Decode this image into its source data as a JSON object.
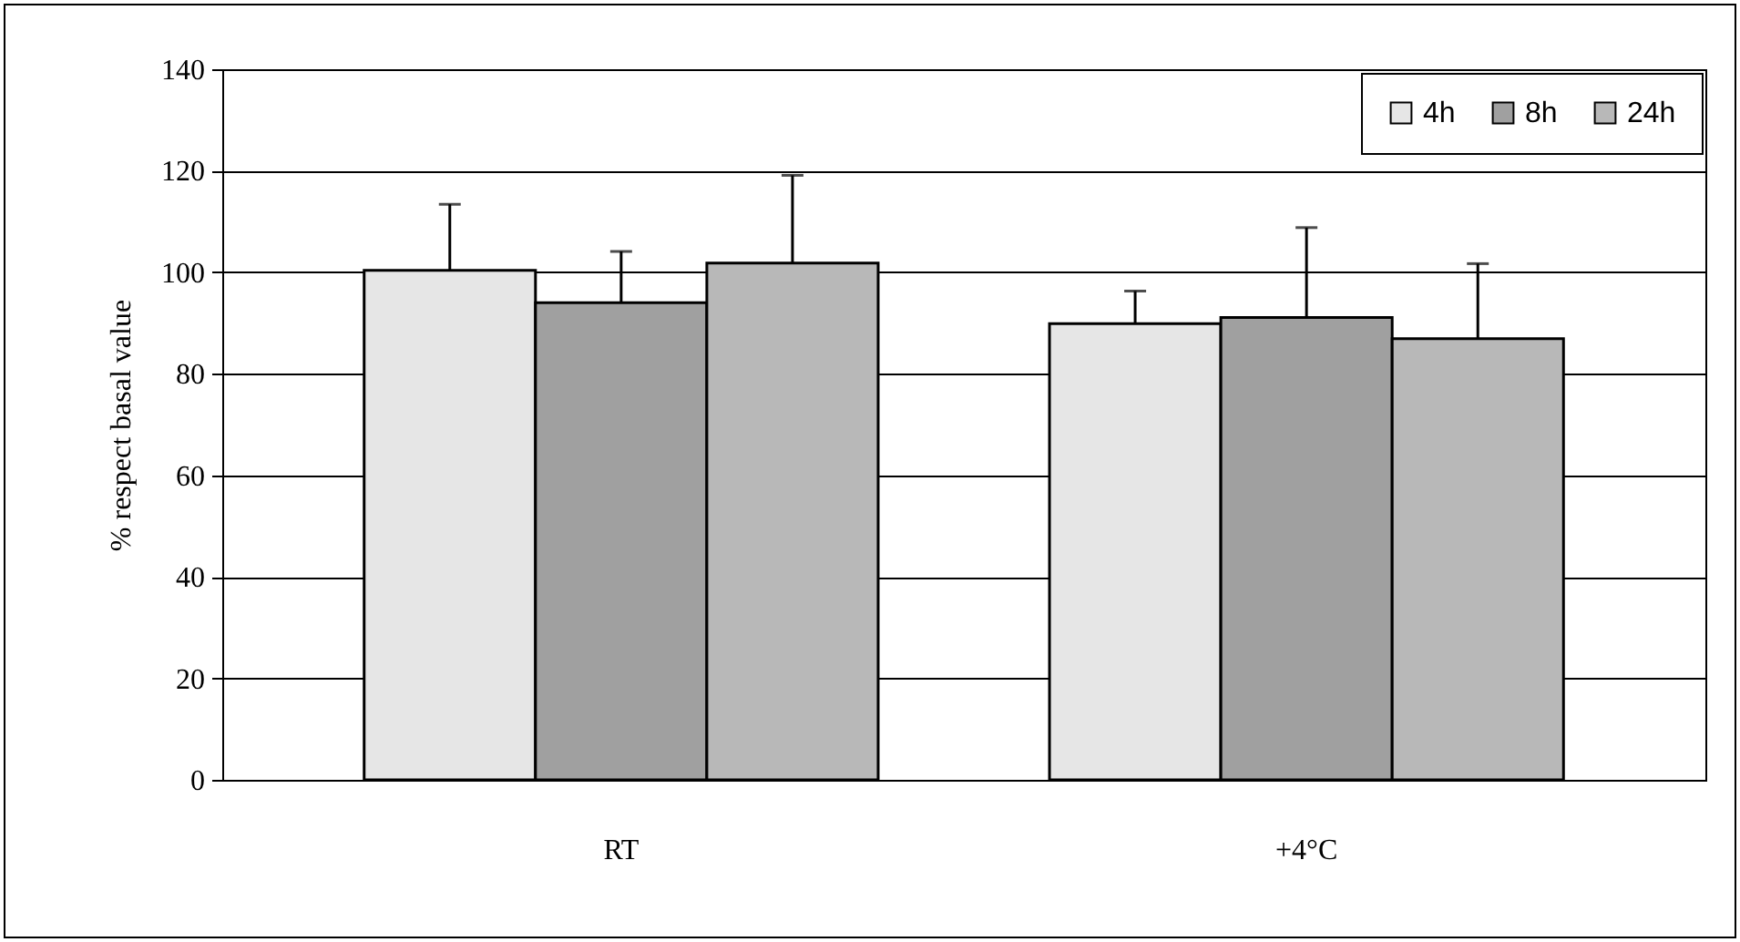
{
  "chart_data": {
    "type": "bar",
    "ylabel": "% respect basal value",
    "categories": [
      "RT",
      "+4°C"
    ],
    "series": [
      {
        "name": "4h",
        "color": "#e6e6e6",
        "values": [
          100.4,
          89.9
        ],
        "errors": [
          [
            100.4,
            113.4
          ],
          [
            89.9,
            96.3
          ]
        ]
      },
      {
        "name": "8h",
        "color": "#a0a0a0",
        "values": [
          94.0,
          91.1
        ],
        "errors": [
          [
            94.0,
            104.1
          ],
          [
            91.1,
            108.8
          ]
        ]
      },
      {
        "name": "24h",
        "color": "#b8b8b8",
        "values": [
          101.8,
          86.9
        ],
        "errors": [
          [
            101.8,
            119.1
          ],
          [
            86.9,
            101.7
          ]
        ]
      }
    ],
    "ylim": [
      0,
      140
    ],
    "yticks": [
      0,
      20,
      40,
      60,
      80,
      100,
      120,
      140
    ],
    "grid": "y",
    "legend": "top right"
  }
}
